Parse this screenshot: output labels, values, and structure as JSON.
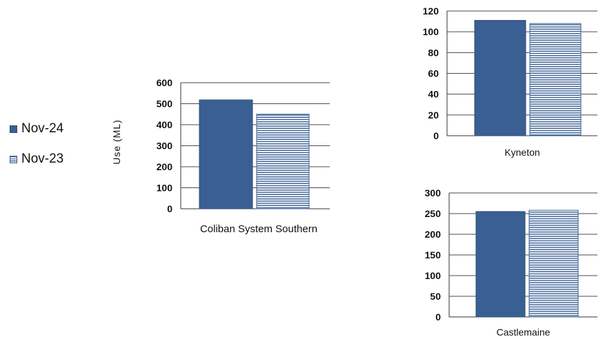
{
  "legend": [
    {
      "label": "Nov-24",
      "pattern": "solid"
    },
    {
      "label": "Nov-23",
      "pattern": "striped"
    }
  ],
  "colors": {
    "bar": "#3a5f93",
    "grid": "#4a4a4a",
    "axis": "#333333"
  },
  "chart_data": [
    {
      "type": "bar",
      "title": "",
      "categories": [
        "Coliban System Southern"
      ],
      "series": [
        {
          "name": "Nov-24",
          "values": [
            518
          ]
        },
        {
          "name": "Nov-23",
          "values": [
            450
          ]
        }
      ],
      "ylabel": "Use  (ML)",
      "ylim": [
        0,
        600
      ],
      "yticks": [
        0,
        100,
        200,
        300,
        400,
        500,
        600
      ],
      "grid": true
    },
    {
      "type": "bar",
      "title": "",
      "categories": [
        "Kyneton"
      ],
      "series": [
        {
          "name": "Nov-24",
          "values": [
            111
          ]
        },
        {
          "name": "Nov-23",
          "values": [
            108
          ]
        }
      ],
      "ylabel": "",
      "ylim": [
        0,
        120
      ],
      "yticks": [
        0,
        20,
        40,
        60,
        80,
        100,
        120
      ],
      "grid": true
    },
    {
      "type": "bar",
      "title": "",
      "categories": [
        "Castlemaine"
      ],
      "series": [
        {
          "name": "Nov-24",
          "values": [
            255
          ]
        },
        {
          "name": "Nov-23",
          "values": [
            258
          ]
        }
      ],
      "ylabel": "",
      "ylim": [
        0,
        300
      ],
      "yticks": [
        0,
        50,
        100,
        150,
        200,
        250,
        300
      ],
      "grid": true
    }
  ]
}
